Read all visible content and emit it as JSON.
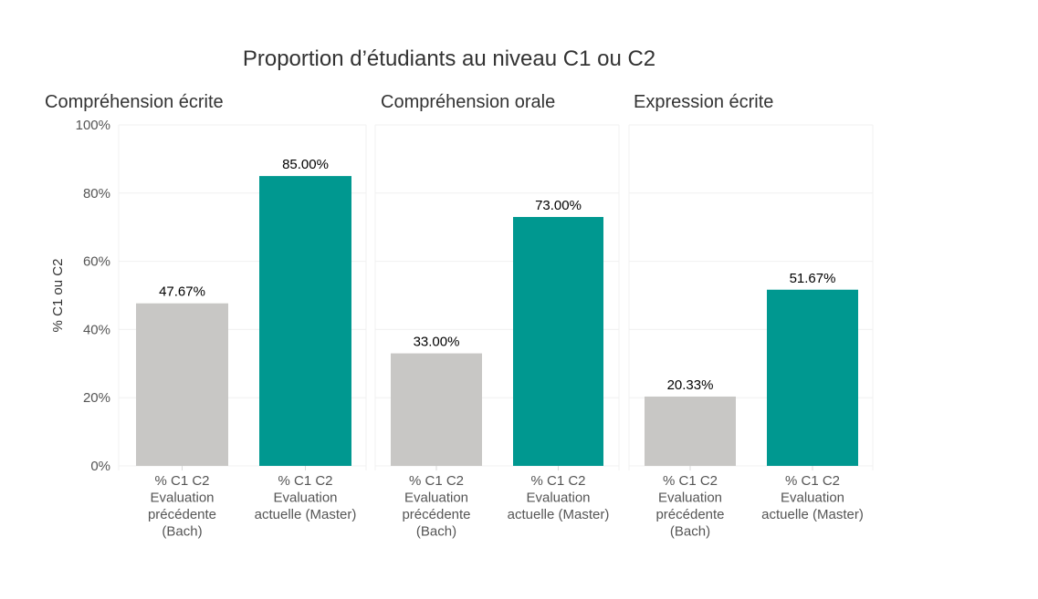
{
  "chart_data": {
    "type": "bar",
    "title": "Proportion d’étudiants au niveau C1 ou C2",
    "ylabel": "% C1 ou C2",
    "ylim": [
      0,
      100
    ],
    "yticks": [
      0,
      20,
      40,
      60,
      80,
      100
    ],
    "ytick_labels": [
      "0%",
      "20%",
      "40%",
      "60%",
      "80%",
      "100%"
    ],
    "grid": true,
    "colors": [
      "#c8c7c5",
      "#009890"
    ],
    "categories": [
      [
        "% C1 C2",
        "Evaluation",
        "précédente",
        "(Bach)"
      ],
      [
        "% C1 C2",
        "Evaluation",
        "actuelle (Master)"
      ]
    ],
    "panels": [
      {
        "title": "Compréhension écrite",
        "values": [
          47.67,
          85.0
        ],
        "labels": [
          "47.67%",
          "85.00%"
        ]
      },
      {
        "title": "Compréhension orale",
        "values": [
          33.0,
          73.0
        ],
        "labels": [
          "33.00%",
          "73.00%"
        ]
      },
      {
        "title": "Expression écrite",
        "values": [
          20.33,
          51.67
        ],
        "labels": [
          "20.33%",
          "51.67%"
        ]
      }
    ]
  }
}
